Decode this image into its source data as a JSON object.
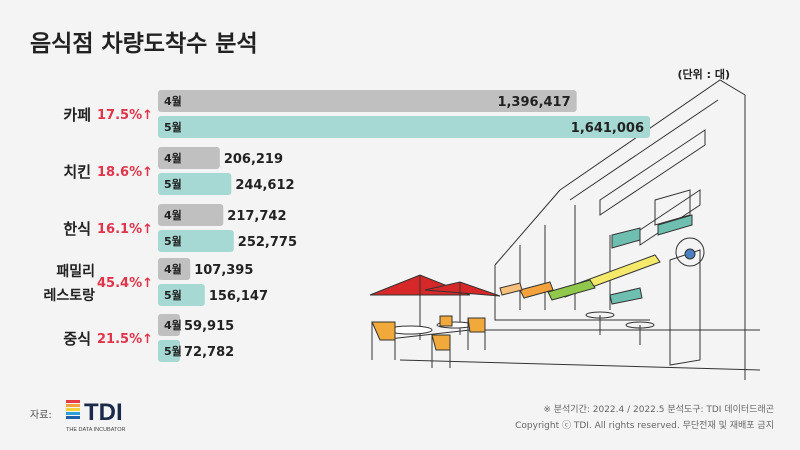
{
  "title": "음식점 차량도착수 분석",
  "unit_label": "(단위 : 대)",
  "chart_data": {
    "type": "bar",
    "orientation": "horizontal",
    "categories": [
      "카페",
      "치킨",
      "한식",
      "패밀리 레스토랑",
      "중식"
    ],
    "category_label_lines": [
      [
        "카페"
      ],
      [
        "치킨"
      ],
      [
        "한식"
      ],
      [
        "패밀리",
        "레스토랑"
      ],
      [
        "중식"
      ]
    ],
    "growth_rates": [
      "17.5%",
      "18.6%",
      "16.1%",
      "45.4%",
      "21.5%"
    ],
    "growth_arrow": "↑",
    "series": [
      {
        "name": "4월",
        "values": [
          1396417,
          206219,
          217742,
          107395,
          59915
        ],
        "color": "#c0c0c0"
      },
      {
        "name": "5월",
        "values": [
          1641006,
          244612,
          252775,
          156147,
          72782
        ],
        "color": "#a6d9d3"
      }
    ],
    "value_labels": [
      [
        "1,396,417",
        "1,641,006"
      ],
      [
        "206,219",
        "244,612"
      ],
      [
        "217,742",
        "252,775"
      ],
      [
        "107,395",
        "156,147"
      ],
      [
        "59,915",
        "72,782"
      ]
    ],
    "grid": false,
    "legend": "none"
  },
  "source_label": "자료:",
  "logo": {
    "text": "TDI",
    "tagline": "THE DATA INCUBATOR",
    "stripe_colors": [
      "#e63946",
      "#f4a23c",
      "#f2d13a",
      "#2f9fd8",
      "#1f5fa8"
    ]
  },
  "footer": {
    "line1": "※ 분석기간: 2022.4 / 2022.5    분석도구: TDI 데이터드래곤",
    "line2": "Copyright ⓒ TDI. All rights reserved. 무단전재 및 재배포 금지"
  },
  "colors": {
    "accent_red": "#e0344a",
    "label_dark": "#222222"
  }
}
